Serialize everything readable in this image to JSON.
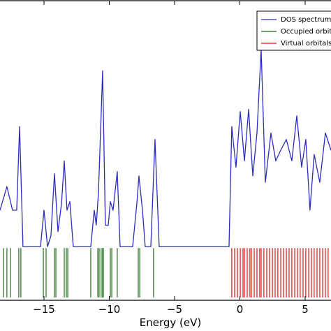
{
  "chart_data": {
    "type": "line",
    "xlabel": "Energy (eV)",
    "xlim": [
      -18.37,
      6.98
    ],
    "ylim": [
      -0.25,
      1.15
    ],
    "xticks": [
      {
        "value": -15,
        "label": "−15"
      },
      {
        "value": -10,
        "label": "−10"
      },
      {
        "value": -5,
        "label": "−5"
      },
      0,
      5
    ],
    "legend": "upper right",
    "series": [
      {
        "name": "DOS spectrum",
        "color": "#2b2bc0",
        "x": [
          -18.37,
          -17.84,
          -17.41,
          -17.09,
          -16.87,
          -16.61,
          -15.27,
          -15.0,
          -14.73,
          -14.47,
          -14.2,
          -13.93,
          -13.66,
          -13.45,
          -13.24,
          -13.02,
          -12.76,
          -11.42,
          -11.15,
          -11.0,
          -10.83,
          -10.51,
          -10.3,
          -10.08,
          -9.92,
          -9.71,
          -9.39,
          -9.17,
          -8.21,
          -7.89,
          -7.73,
          -7.46,
          -7.25,
          -6.82,
          -6.5,
          -6.18,
          -0.83,
          -0.62,
          -0.3,
          0.03,
          0.35,
          0.67,
          0.99,
          1.31,
          1.63,
          1.95,
          2.38,
          2.75,
          3.13,
          3.56,
          3.98,
          4.36,
          4.73,
          5.05,
          5.37,
          5.69,
          6.12,
          6.55,
          6.98
        ],
        "values": [
          0.17,
          0.28,
          0.17,
          0.17,
          0.56,
          0,
          0,
          0.17,
          0,
          0.05,
          0.34,
          0.07,
          0.2,
          0.4,
          0.17,
          0.21,
          0,
          0,
          0.17,
          0.1,
          0.25,
          0.82,
          0.1,
          0.1,
          0.21,
          0.17,
          0.35,
          0,
          0,
          0.2,
          0.33,
          0.17,
          0,
          0,
          0.5,
          0,
          0,
          0.56,
          0.37,
          0.63,
          0.4,
          0.64,
          0.33,
          0.53,
          0.92,
          0.3,
          0.53,
          0.4,
          0.45,
          0.5,
          0.4,
          0.61,
          0.37,
          0.5,
          0.17,
          0.43,
          0.3,
          0.53,
          0.45
        ]
      },
      {
        "name": "Occupied orbitals",
        "color": "#1f6e1f",
        "x": [
          -18.1,
          -17.84,
          -17.57,
          -16.93,
          -16.77,
          -15.05,
          -14.84,
          -14.2,
          -14.09,
          -13.45,
          -13.29,
          -13.18,
          -11.42,
          -10.88,
          -10.78,
          -10.62,
          -10.51,
          -10.46,
          -9.92,
          -9.81,
          -9.39,
          -7.78,
          -7.67,
          -6.61
        ]
      },
      {
        "name": "Virtual orbitals",
        "color": "#e01010",
        "x": [
          -0.62,
          -0.4,
          -0.19,
          0.03,
          0.24,
          0.35,
          0.56,
          0.77,
          0.88,
          1.1,
          1.31,
          1.52,
          1.63,
          1.84,
          2.06,
          2.27,
          2.49,
          2.7,
          2.91,
          3.13,
          3.34,
          3.56,
          3.77,
          3.98,
          4.2,
          4.41,
          4.62,
          4.84,
          5.05,
          5.27,
          5.48,
          5.69,
          5.91,
          6.12,
          6.34,
          6.55,
          6.76
        ]
      }
    ]
  }
}
